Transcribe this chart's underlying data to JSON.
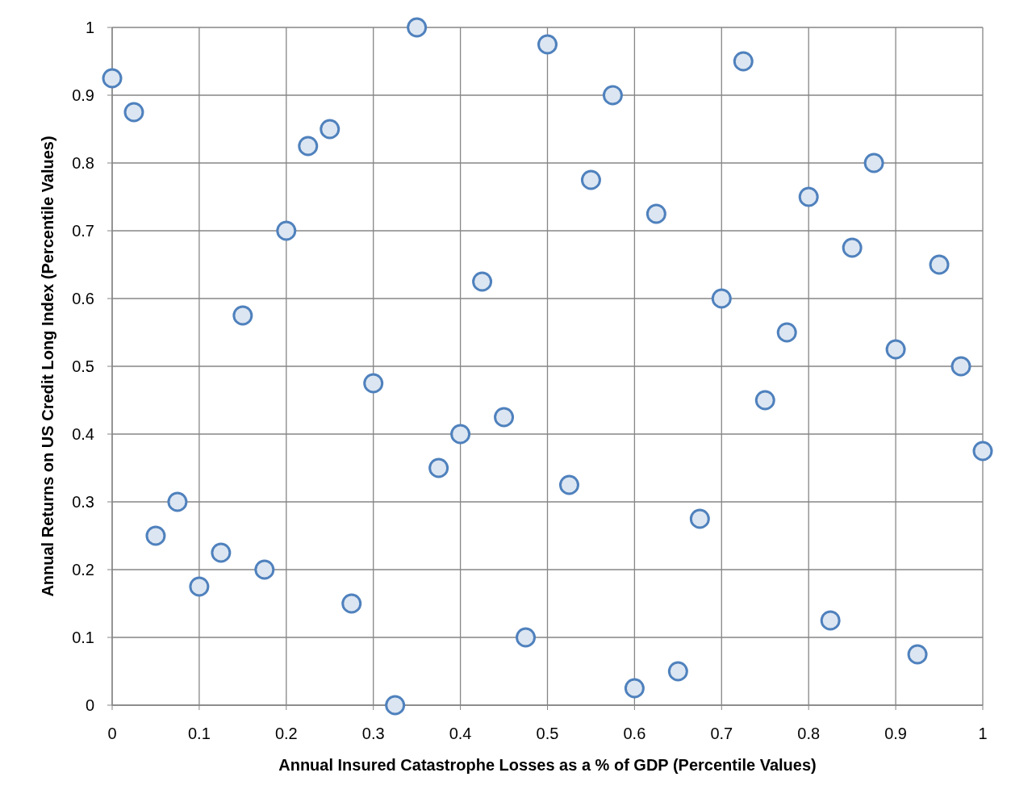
{
  "chart_data": {
    "type": "scatter",
    "xlabel": "Annual Insured Catastrophe Losses as a % of GDP (Percentile Values)",
    "ylabel": "Annual Returns on US Credit Long Index (Percentile Values)",
    "xlim": [
      0,
      1
    ],
    "ylim": [
      0,
      1
    ],
    "xticks": [
      0,
      0.1,
      0.2,
      0.3,
      0.4,
      0.5,
      0.6,
      0.7,
      0.8,
      0.9,
      1
    ],
    "yticks": [
      0,
      0.1,
      0.2,
      0.3,
      0.4,
      0.5,
      0.6,
      0.7,
      0.8,
      0.9,
      1
    ],
    "grid": true,
    "marker": "circle",
    "series": [
      {
        "color": "#4f81bd",
        "x": [
          0,
          0.025,
          0.05,
          0.075,
          0.1,
          0.125,
          0.15,
          0.175,
          0.2,
          0.225,
          0.25,
          0.275,
          0.3,
          0.325,
          0.35,
          0.375,
          0.4,
          0.425,
          0.45,
          0.475,
          0.5,
          0.525,
          0.55,
          0.575,
          0.6,
          0.625,
          0.65,
          0.675,
          0.7,
          0.725,
          0.75,
          0.775,
          0.8,
          0.825,
          0.85,
          0.875,
          0.9,
          0.925,
          0.95,
          0.975,
          1
        ],
        "values": [
          0.925,
          0.875,
          0.25,
          0.3,
          0.175,
          0.225,
          0.575,
          0.2,
          0.7,
          0.825,
          0.85,
          0.15,
          0.475,
          0,
          1,
          0.35,
          0.4,
          0.625,
          0.425,
          0.1,
          0.975,
          0.325,
          0.775,
          0.9,
          0.025,
          0.725,
          0.05,
          0.275,
          0.6,
          0.95,
          0.45,
          0.55,
          0.75,
          0.125,
          0.675,
          0.8,
          0.525,
          0.075,
          0.65,
          0.5,
          0.375
        ]
      }
    ]
  }
}
